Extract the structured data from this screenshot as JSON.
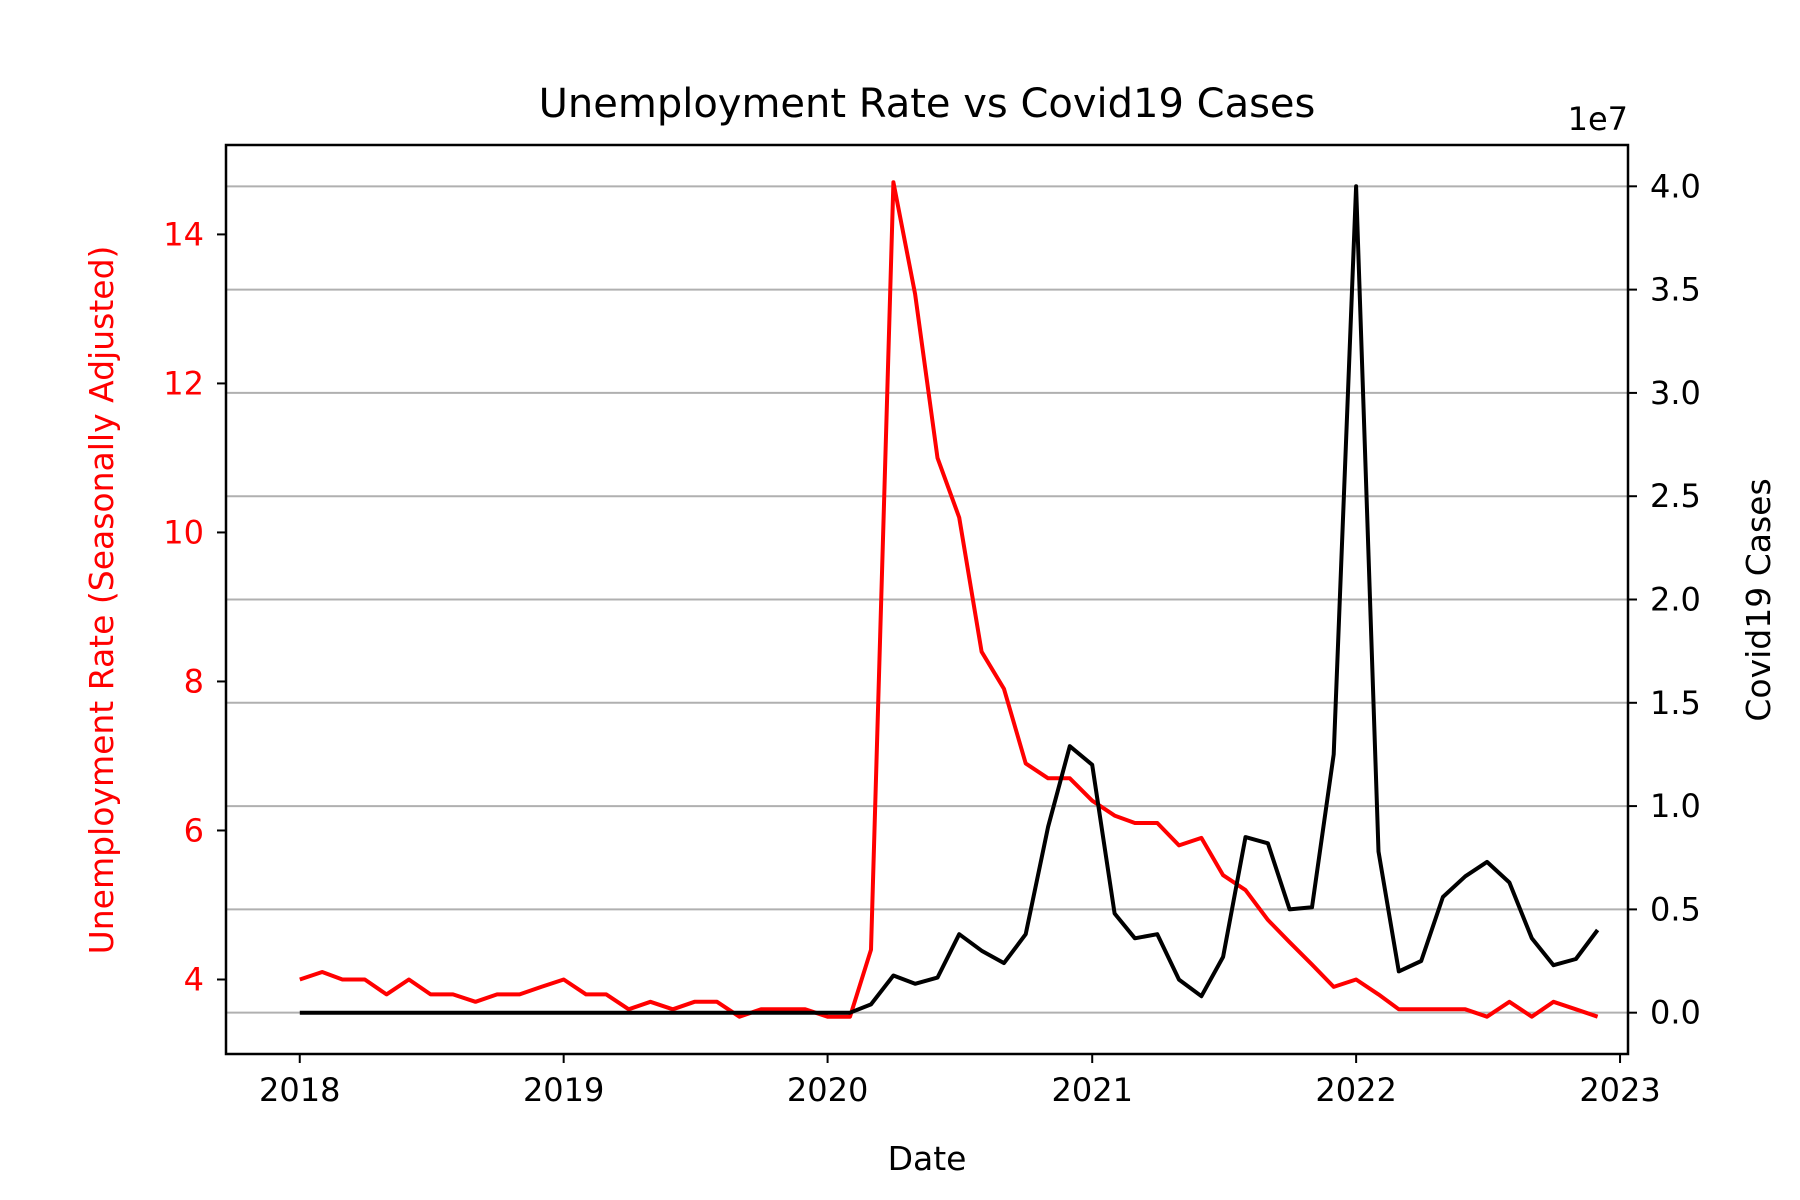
{
  "chart_data": {
    "type": "line",
    "title": "Unemployment Rate vs Covid19 Cases",
    "xlabel": "Date",
    "ylabel_left": "Unemployment Rate (Seasonally Adjusted)",
    "ylabel_right": "Covid19 Cases",
    "right_axis_offset_label": "1e7",
    "colors": {
      "unemployment": "#ff0000",
      "covid": "#000000",
      "grid": "#b0b0b0"
    },
    "grid": true,
    "grid_axis": "right-y",
    "xlim": [
      "2017-09-21",
      "2023-01-12"
    ],
    "ylim_left": [
      3.0,
      15.2
    ],
    "ylim_right": [
      -2000000,
      42000000
    ],
    "x_ticks": [
      {
        "value": "2018-01-01",
        "label": "2018"
      },
      {
        "value": "2019-01-01",
        "label": "2019"
      },
      {
        "value": "2020-01-01",
        "label": "2020"
      },
      {
        "value": "2021-01-01",
        "label": "2021"
      },
      {
        "value": "2022-01-01",
        "label": "2022"
      },
      {
        "value": "2023-01-01",
        "label": "2023"
      }
    ],
    "y_left_ticks": [
      {
        "value": 4,
        "label": "4"
      },
      {
        "value": 6,
        "label": "6"
      },
      {
        "value": 8,
        "label": "8"
      },
      {
        "value": 10,
        "label": "10"
      },
      {
        "value": 12,
        "label": "12"
      },
      {
        "value": 14,
        "label": "14"
      }
    ],
    "y_right_ticks": [
      {
        "value": 0,
        "label": "0.0"
      },
      {
        "value": 5000000,
        "label": "0.5"
      },
      {
        "value": 10000000,
        "label": "1.0"
      },
      {
        "value": 15000000,
        "label": "1.5"
      },
      {
        "value": 20000000,
        "label": "2.0"
      },
      {
        "value": 25000000,
        "label": "2.5"
      },
      {
        "value": 30000000,
        "label": "3.0"
      },
      {
        "value": 35000000,
        "label": "3.5"
      },
      {
        "value": 40000000,
        "label": "4.0"
      }
    ],
    "x": [
      "2018-01-01",
      "2018-02-01",
      "2018-03-01",
      "2018-04-01",
      "2018-05-01",
      "2018-06-01",
      "2018-07-01",
      "2018-08-01",
      "2018-09-01",
      "2018-10-01",
      "2018-11-01",
      "2018-12-01",
      "2019-01-01",
      "2019-02-01",
      "2019-03-01",
      "2019-04-01",
      "2019-05-01",
      "2019-06-01",
      "2019-07-01",
      "2019-08-01",
      "2019-09-01",
      "2019-10-01",
      "2019-11-01",
      "2019-12-01",
      "2020-01-01",
      "2020-02-01",
      "2020-03-01",
      "2020-04-01",
      "2020-05-01",
      "2020-06-01",
      "2020-07-01",
      "2020-08-01",
      "2020-09-01",
      "2020-10-01",
      "2020-11-01",
      "2020-12-01",
      "2021-01-01",
      "2021-02-01",
      "2021-03-01",
      "2021-04-01",
      "2021-05-01",
      "2021-06-01",
      "2021-07-01",
      "2021-08-01",
      "2021-09-01",
      "2021-10-01",
      "2021-11-01",
      "2021-12-01",
      "2022-01-01",
      "2022-02-01",
      "2022-03-01",
      "2022-04-01",
      "2022-05-01",
      "2022-06-01",
      "2022-07-01",
      "2022-08-01",
      "2022-09-01",
      "2022-10-01",
      "2022-11-01",
      "2022-12-01"
    ],
    "series": [
      {
        "name": "Unemployment Rate (Seasonally Adjusted)",
        "axis": "left",
        "values": [
          4.0,
          4.1,
          4.0,
          4.0,
          3.8,
          4.0,
          3.8,
          3.8,
          3.7,
          3.8,
          3.8,
          3.9,
          4.0,
          3.8,
          3.8,
          3.6,
          3.7,
          3.6,
          3.7,
          3.7,
          3.5,
          3.6,
          3.6,
          3.6,
          3.5,
          3.5,
          4.4,
          14.7,
          13.2,
          11.0,
          10.2,
          8.4,
          7.9,
          6.9,
          6.7,
          6.7,
          6.4,
          6.2,
          6.1,
          6.1,
          5.8,
          5.9,
          5.4,
          5.2,
          4.8,
          4.5,
          4.2,
          3.9,
          4.0,
          3.8,
          3.6,
          3.6,
          3.6,
          3.6,
          3.5,
          3.7,
          3.5,
          3.7,
          3.6,
          3.5
        ]
      },
      {
        "name": "Covid19 Cases",
        "axis": "right",
        "values": [
          0,
          0,
          0,
          0,
          0,
          0,
          0,
          0,
          0,
          0,
          0,
          0,
          0,
          0,
          0,
          0,
          0,
          0,
          0,
          0,
          0,
          0,
          0,
          0,
          0,
          0,
          400000,
          1800000,
          1400000,
          1700000,
          3800000,
          3000000,
          2400000,
          3800000,
          9000000,
          12900000,
          12000000,
          4800000,
          3600000,
          3800000,
          1600000,
          800000,
          2700000,
          8500000,
          8200000,
          5000000,
          5100000,
          12500000,
          40000000,
          7800000,
          2000000,
          2500000,
          5600000,
          6600000,
          7300000,
          6300000,
          3600000,
          2300000,
          2600000,
          4000000
        ]
      }
    ]
  }
}
